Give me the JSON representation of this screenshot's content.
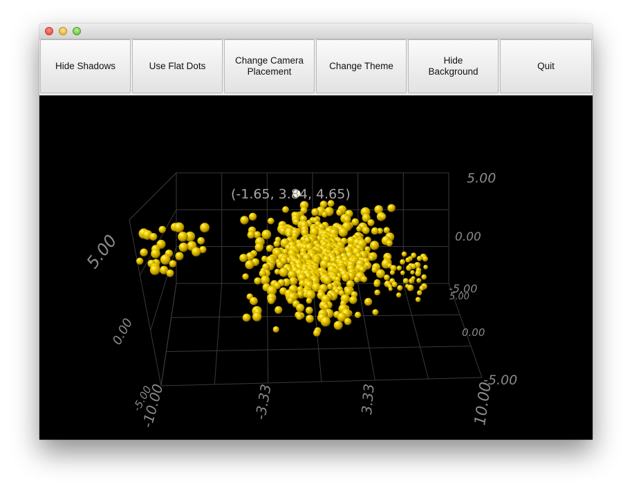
{
  "toolbar": {
    "buttons": [
      {
        "label": "Hide Shadows"
      },
      {
        "label": "Use Flat Dots"
      },
      {
        "label": "Change Camera\nPlacement"
      },
      {
        "label": "Change Theme"
      },
      {
        "label": "Hide Background"
      },
      {
        "label": "Quit"
      }
    ]
  },
  "colors": {
    "dot": "#e6c800",
    "background": "#000000",
    "grid": "#3a3a3a",
    "axis_text": "#8a8a8a"
  },
  "chart_data": {
    "type": "scatter",
    "selected_point_label": "(-1.65, 3.84, 4.65)",
    "axis_labels": {
      "x_ticks": [
        "-10.00",
        "-3.33",
        "3.33",
        "10.00"
      ],
      "y_ticks_right": [
        "5.00",
        "0.00",
        "-5.00"
      ],
      "z_ticks_right": [
        "5.00",
        "0.00",
        "-5.00"
      ],
      "y_ticks_left": [
        "5.00",
        "0.00",
        "-5.00"
      ]
    }
  }
}
